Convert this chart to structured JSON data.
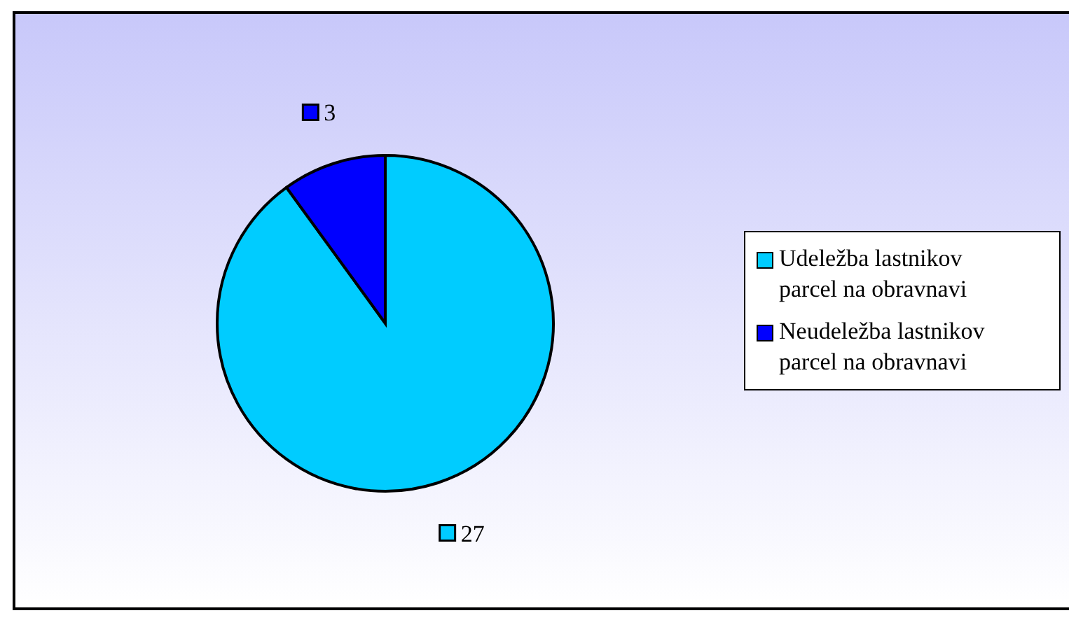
{
  "chart_data": {
    "type": "pie",
    "categories": [
      "Udeležba lastnikov parcel na obravnavi",
      "Neudeležba lastnikov parcel na obravnavi"
    ],
    "values": [
      27,
      3
    ],
    "colors": [
      "#00ccff",
      "#0000ff"
    ],
    "data_labels": true,
    "legend": "right"
  }
}
